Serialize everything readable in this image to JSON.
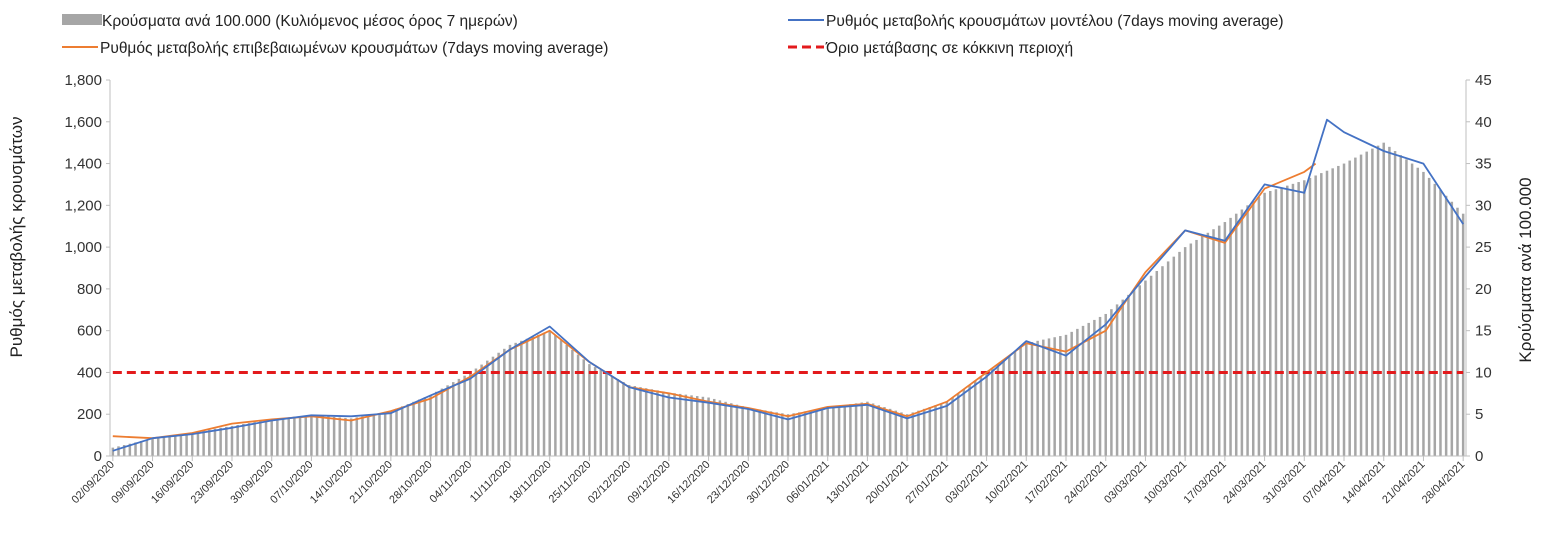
{
  "chart_data": {
    "type": "bar+line",
    "legend": {
      "placement": "top",
      "entries": [
        {
          "key": "bars",
          "label": "Κρούσματα ανά 100.000 (Κυλιόμενος μέσος όρος 7 ημερών)",
          "color": "#a6a6a6",
          "kind": "bar"
        },
        {
          "key": "model",
          "label": "Ρυθμός μεταβολής κρουσμάτων μοντέλου (7days moving average)",
          "color": "#4472c4",
          "kind": "line"
        },
        {
          "key": "confirmed",
          "label": "Ρυθμός μεταβολής επιβεβαιωμένων κρουσμάτων (7days moving average)",
          "color": "#ed7d31",
          "kind": "line"
        },
        {
          "key": "threshold",
          "label": "Όριο μετάβασης σε κόκκινη περιοχή",
          "color": "#e31a1c",
          "kind": "dashed"
        }
      ]
    },
    "ylabel_left": "Ρυθμός μεταβολής κρουσμάτων",
    "ylabel_right": "Κρούσματα ανά 100.000",
    "left_axis": {
      "min": 0,
      "max": 1800,
      "step": 200,
      "ticks": [
        "0",
        "200",
        "400",
        "600",
        "800",
        "1,000",
        "1,200",
        "1,400",
        "1,600",
        "1,800"
      ]
    },
    "right_axis": {
      "min": 0,
      "max": 45,
      "step": 5,
      "ticks": [
        "0",
        "5",
        "10",
        "15",
        "20",
        "25",
        "30",
        "35",
        "40",
        "45"
      ]
    },
    "x_start": "2020-09-02",
    "x_end": "2021-04-28",
    "x_tick_labels": [
      "02/09/2020",
      "09/09/2020",
      "16/09/2020",
      "23/09/2020",
      "30/09/2020",
      "07/10/2020",
      "14/10/2020",
      "21/10/2020",
      "28/10/2020",
      "04/11/2020",
      "11/11/2020",
      "18/11/2020",
      "25/11/2020",
      "02/12/2020",
      "09/12/2020",
      "16/12/2020",
      "23/12/2020",
      "30/12/2020",
      "06/01/2021",
      "13/01/2021",
      "20/01/2021",
      "27/01/2021",
      "03/02/2021",
      "10/02/2021",
      "17/02/2021",
      "24/02/2021",
      "03/03/2021",
      "10/03/2021",
      "17/03/2021",
      "24/03/2021",
      "31/03/2021",
      "07/04/2021",
      "14/04/2021",
      "21/04/2021",
      "28/04/2021"
    ],
    "threshold_value": 400,
    "grid": false,
    "series": [
      {
        "name": "Κρούσματα ανά 100.000 (Κυλιόμενος μέσος όρος 7 ημερών)",
        "axis": "right",
        "points": [
          [
            "2020-09-02",
            1.0
          ],
          [
            "2020-09-09",
            2.1
          ],
          [
            "2020-09-16",
            2.8
          ],
          [
            "2020-09-23",
            3.6
          ],
          [
            "2020-09-30",
            4.4
          ],
          [
            "2020-10-07",
            4.9
          ],
          [
            "2020-10-14",
            4.5
          ],
          [
            "2020-10-21",
            5.4
          ],
          [
            "2020-10-28",
            7.3
          ],
          [
            "2020-11-04",
            10.0
          ],
          [
            "2020-11-11",
            13.3
          ],
          [
            "2020-11-18",
            15.0
          ],
          [
            "2020-11-25",
            11.0
          ],
          [
            "2020-12-02",
            8.5
          ],
          [
            "2020-12-09",
            7.6
          ],
          [
            "2020-12-16",
            7.0
          ],
          [
            "2020-12-23",
            5.8
          ],
          [
            "2020-12-30",
            5.0
          ],
          [
            "2021-01-06",
            5.8
          ],
          [
            "2021-01-13",
            6.5
          ],
          [
            "2021-01-20",
            5.0
          ],
          [
            "2021-01-27",
            6.5
          ],
          [
            "2021-02-03",
            10.0
          ],
          [
            "2021-02-10",
            13.5
          ],
          [
            "2021-02-17",
            14.5
          ],
          [
            "2021-02-24",
            17.0
          ],
          [
            "2021-03-03",
            21.0
          ],
          [
            "2021-03-10",
            25.0
          ],
          [
            "2021-03-17",
            28.0
          ],
          [
            "2021-03-24",
            31.5
          ],
          [
            "2021-03-31",
            33.0
          ],
          [
            "2021-04-07",
            35.0
          ],
          [
            "2021-04-14",
            37.5
          ],
          [
            "2021-04-21",
            34.0
          ],
          [
            "2021-04-28",
            29.0
          ]
        ]
      },
      {
        "name": "Ρυθμός μεταβολής κρουσμάτων μοντέλου (7days moving average)",
        "axis": "left",
        "points": [
          [
            "2020-09-02",
            25
          ],
          [
            "2020-09-09",
            85
          ],
          [
            "2020-09-16",
            105
          ],
          [
            "2020-09-23",
            135
          ],
          [
            "2020-09-30",
            170
          ],
          [
            "2020-10-07",
            195
          ],
          [
            "2020-10-14",
            190
          ],
          [
            "2020-10-21",
            205
          ],
          [
            "2020-10-28",
            290
          ],
          [
            "2020-11-04",
            370
          ],
          [
            "2020-11-11",
            510
          ],
          [
            "2020-11-18",
            620
          ],
          [
            "2020-11-25",
            450
          ],
          [
            "2020-12-02",
            330
          ],
          [
            "2020-12-09",
            280
          ],
          [
            "2020-12-16",
            255
          ],
          [
            "2020-12-23",
            225
          ],
          [
            "2020-12-30",
            175
          ],
          [
            "2021-01-06",
            230
          ],
          [
            "2021-01-13",
            245
          ],
          [
            "2021-01-20",
            180
          ],
          [
            "2021-01-27",
            240
          ],
          [
            "2021-02-03",
            380
          ],
          [
            "2021-02-10",
            550
          ],
          [
            "2021-02-17",
            480
          ],
          [
            "2021-02-24",
            630
          ],
          [
            "2021-03-03",
            860
          ],
          [
            "2021-03-10",
            1080
          ],
          [
            "2021-03-17",
            1030
          ],
          [
            "2021-03-24",
            1300
          ],
          [
            "2021-03-31",
            1260
          ],
          [
            "2021-04-04",
            1610
          ],
          [
            "2021-04-07",
            1550
          ],
          [
            "2021-04-14",
            1460
          ],
          [
            "2021-04-21",
            1400
          ],
          [
            "2021-04-28",
            1110
          ]
        ]
      },
      {
        "name": "Ρυθμός μεταβολής επιβεβαιωμένων κρουσμάτων (7days moving average)",
        "axis": "left",
        "points": [
          [
            "2020-09-02",
            95
          ],
          [
            "2020-09-09",
            85
          ],
          [
            "2020-09-16",
            110
          ],
          [
            "2020-09-23",
            155
          ],
          [
            "2020-09-30",
            175
          ],
          [
            "2020-10-07",
            190
          ],
          [
            "2020-10-14",
            170
          ],
          [
            "2020-10-21",
            215
          ],
          [
            "2020-10-28",
            275
          ],
          [
            "2020-11-04",
            380
          ],
          [
            "2020-11-11",
            510
          ],
          [
            "2020-11-18",
            600
          ],
          [
            "2020-11-25",
            450
          ],
          [
            "2020-12-02",
            330
          ],
          [
            "2020-12-09",
            300
          ],
          [
            "2020-12-16",
            260
          ],
          [
            "2020-12-23",
            230
          ],
          [
            "2020-12-30",
            190
          ],
          [
            "2021-01-06",
            235
          ],
          [
            "2021-01-13",
            250
          ],
          [
            "2021-01-20",
            190
          ],
          [
            "2021-01-27",
            260
          ],
          [
            "2021-02-03",
            400
          ],
          [
            "2021-02-10",
            540
          ],
          [
            "2021-02-17",
            500
          ],
          [
            "2021-02-24",
            600
          ],
          [
            "2021-03-03",
            880
          ],
          [
            "2021-03-10",
            1080
          ],
          [
            "2021-03-17",
            1020
          ],
          [
            "2021-03-24",
            1280
          ],
          [
            "2021-03-31",
            1360
          ],
          [
            "2021-04-02",
            1400
          ]
        ]
      },
      {
        "name": "Όριο μετάβασης σε κόκκινη περιοχή",
        "axis": "left",
        "points": [
          [
            "2020-09-02",
            400
          ],
          [
            "2021-04-28",
            400
          ]
        ]
      }
    ]
  }
}
